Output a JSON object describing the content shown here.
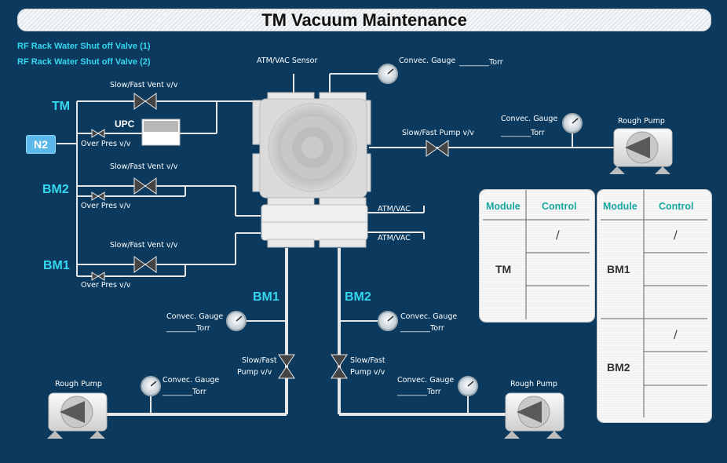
{
  "title": "TM Vacuum Maintenance",
  "links": {
    "valve1": "RF Rack Water Shut off Valve (1)",
    "valve2": "RF Rack Water Shut off Valve (2)"
  },
  "modules": {
    "tm": "TM",
    "bm2": "BM2",
    "bm1": "BM1",
    "n2": "N2",
    "upc": "UPC"
  },
  "labels": {
    "atm_vac_sensor": "ATM/VAC Sensor",
    "convec_gauge": "Convec. Gauge",
    "torr_line": "________Torr",
    "slow_fast_vent": "Slow/Fast  Vent  v/v",
    "over_pres": "Over Pres v/v",
    "slow_fast_pump": "Slow/Fast Pump v/v",
    "rough_pump": "Rough Pump",
    "atm_vac": "ATM/VAC",
    "slow_fast": "Slow/Fast",
    "pump_vv": "Pump v/v"
  },
  "tm_table": {
    "headers": [
      "Module",
      "Control"
    ],
    "module": "TM",
    "control": "/"
  },
  "bm_table": {
    "headers": [
      "Module",
      "Control"
    ],
    "rows": [
      {
        "module": "BM1",
        "control": "/"
      },
      {
        "module": "BM2",
        "control": "/"
      }
    ]
  },
  "colors": {
    "background": "#0b3a5e",
    "accent": "#35d6f0",
    "pipe": "#e6e6e6",
    "header_text": "#1aa7a0"
  }
}
